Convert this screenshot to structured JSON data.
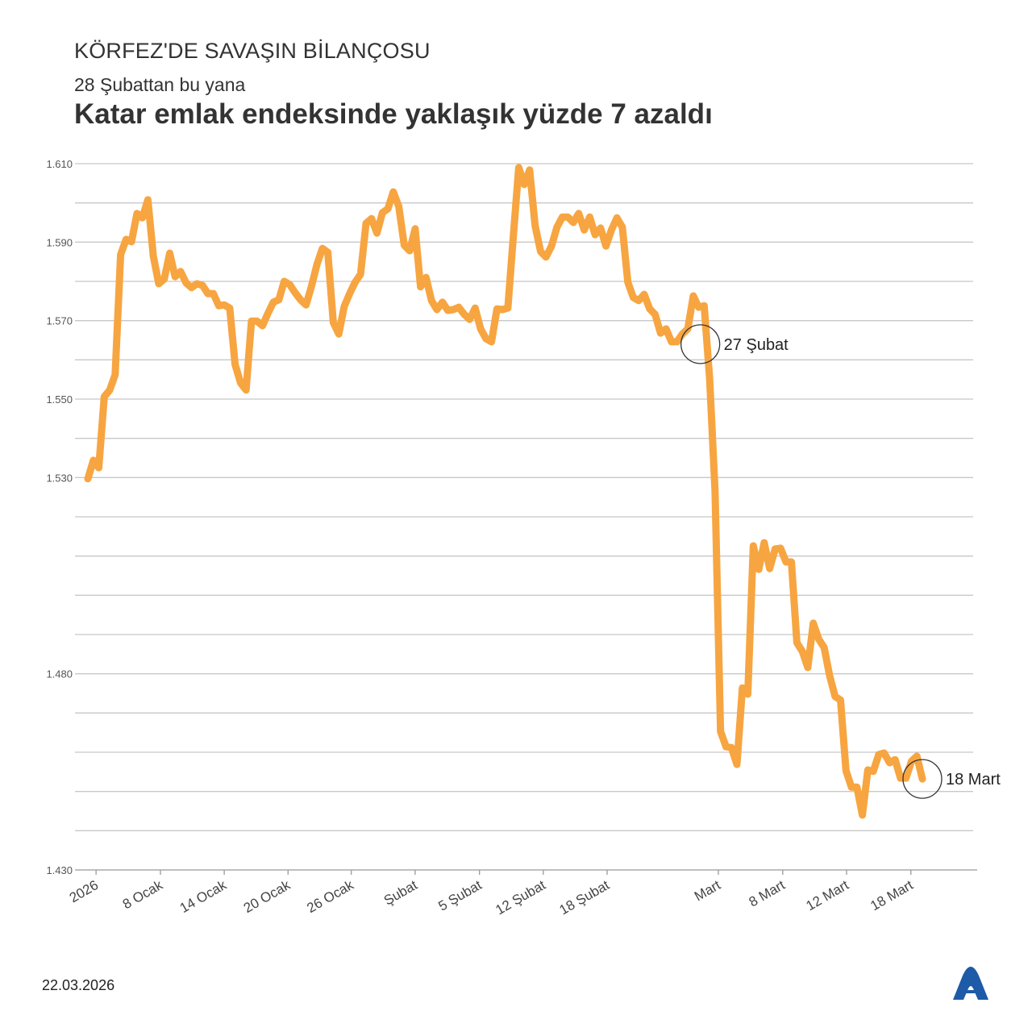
{
  "header": {
    "kicker": "KÖRFEZ'DE SAVAŞIN BİLANÇOSU",
    "subtitle": "28 Şubattan bu yana",
    "title": "Katar emlak endeksinde yaklaşık yüzde 7 azaldı"
  },
  "footer": {
    "date": "22.03.2026",
    "logo_text": "AA"
  },
  "colors": {
    "line": "#f7a541",
    "grid": "#c8c8c8",
    "logo": "#1d5aa8"
  },
  "chart_data": {
    "type": "line",
    "title": "Katar emlak endeksinde yaklaşık yüzde 7 azaldı",
    "xlabel": "",
    "ylabel": "",
    "ylim": [
      1.43,
      1.61
    ],
    "grid": true,
    "grid_step": 0.01,
    "y_ticks": [
      {
        "value": 1.61,
        "label": "1.610"
      },
      {
        "value": 1.59,
        "label": "1.590"
      },
      {
        "value": 1.57,
        "label": "1.570"
      },
      {
        "value": 1.55,
        "label": "1.550"
      },
      {
        "value": 1.53,
        "label": "1.530"
      },
      {
        "value": 1.48,
        "label": "1.480"
      },
      {
        "value": 1.43,
        "label": "1.430"
      }
    ],
    "x_ticks": [
      {
        "index": 1.5,
        "label": "2026"
      },
      {
        "index": 13.3,
        "label": "8 Ocak"
      },
      {
        "index": 25.0,
        "label": "14 Ocak"
      },
      {
        "index": 36.7,
        "label": "20 Ocak"
      },
      {
        "index": 48.3,
        "label": "26 Ocak"
      },
      {
        "index": 60.0,
        "label": "Şubat"
      },
      {
        "index": 71.8,
        "label": "5 Şubat"
      },
      {
        "index": 83.5,
        "label": "12 Şubat"
      },
      {
        "index": 95.2,
        "label": "18 Şubat"
      },
      {
        "index": 115.6,
        "label": "Mart"
      },
      {
        "index": 127.4,
        "label": "8 Mart"
      },
      {
        "index": 139.1,
        "label": "12 Mart"
      },
      {
        "index": 150.9,
        "label": "18 Mart"
      }
    ],
    "annotations": [
      {
        "index": 112.3,
        "value": 1.564,
        "label": "27 Şubat"
      },
      {
        "index": 153,
        "value": 1.4532,
        "label": "18 Mart"
      }
    ],
    "values": [
      1.5297,
      1.5344,
      1.5325,
      1.5506,
      1.5523,
      1.5562,
      1.5868,
      1.5907,
      1.5901,
      1.5973,
      1.5962,
      1.6008,
      1.5864,
      1.5794,
      1.5806,
      1.5872,
      1.5812,
      1.5825,
      1.5796,
      1.5784,
      1.5794,
      1.579,
      1.5769,
      1.5769,
      1.5738,
      1.574,
      1.5732,
      1.5588,
      1.5541,
      1.5523,
      1.5699,
      1.5699,
      1.5687,
      1.5718,
      1.5747,
      1.5753,
      1.58,
      1.5792,
      1.5771,
      1.5753,
      1.574,
      1.5788,
      1.5843,
      1.5884,
      1.5874,
      1.5695,
      1.5666,
      1.5736,
      1.5769,
      1.5798,
      1.5818,
      1.5948,
      1.596,
      1.5923,
      1.5975,
      1.5985,
      1.6028,
      1.5991,
      1.5892,
      1.5878,
      1.5934,
      1.5786,
      1.581,
      1.5751,
      1.5728,
      1.5747,
      1.5726,
      1.5728,
      1.5734,
      1.5716,
      1.5703,
      1.5732,
      1.5679,
      1.5654,
      1.5646,
      1.573,
      1.5728,
      1.5732,
      1.5913,
      1.609,
      1.6047,
      1.6084,
      1.5942,
      1.5876,
      1.5862,
      1.589,
      1.5938,
      1.5964,
      1.5964,
      1.595,
      1.5973,
      1.5931,
      1.5964,
      1.5919,
      1.5936,
      1.589,
      1.5931,
      1.5962,
      1.5938,
      1.5798,
      1.5759,
      1.5751,
      1.5767,
      1.573,
      1.5716,
      1.5668,
      1.5679,
      1.5646,
      1.5646,
      1.5666,
      1.5679,
      1.5763,
      1.5734,
      1.5738,
      1.5551,
      1.5264,
      1.4653,
      1.4614,
      1.4612,
      1.4569,
      1.4764,
      1.4748,
      1.5126,
      1.5066,
      1.5134,
      1.5068,
      1.5118,
      1.512,
      1.5085,
      1.5085,
      1.4879,
      1.4857,
      1.4816,
      1.4929,
      1.4888,
      1.4867,
      1.4795,
      1.4742,
      1.4733,
      1.4553,
      1.4511,
      1.4511,
      1.444,
      1.4555,
      1.4551,
      1.4594,
      1.4598,
      1.4573,
      1.4581,
      1.4534,
      1.4534,
      1.4577,
      1.459,
      1.4532
    ]
  }
}
